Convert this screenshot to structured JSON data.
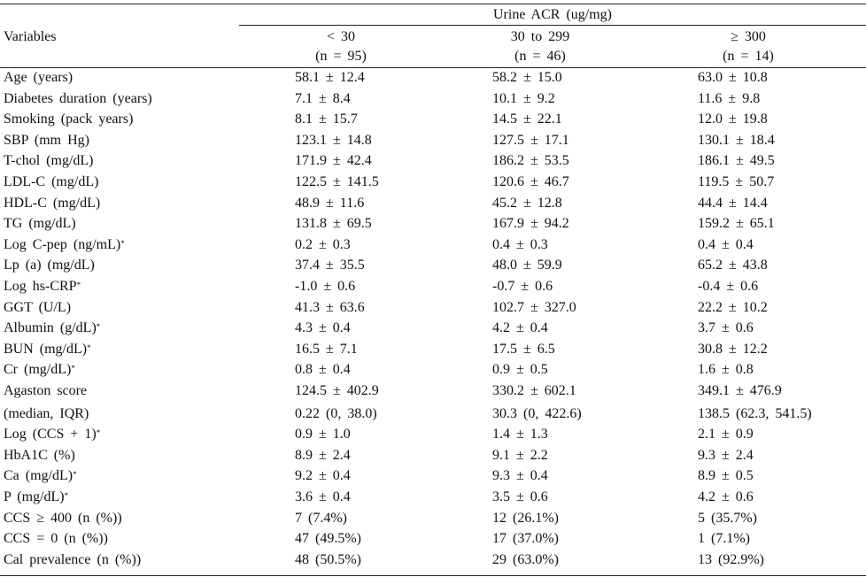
{
  "header": {
    "variables": "Variables",
    "group": "Urine ACR (ug/mg)",
    "columns": [
      {
        "label": "< 30",
        "n": "(n = 95)"
      },
      {
        "label": "30 to 299",
        "n": "(n = 46)"
      },
      {
        "label": "≥ 300",
        "n": "(n = 14)"
      }
    ]
  },
  "rows": [
    {
      "label": "Age (years)",
      "cells": [
        "58.1 ± 12.4",
        "58.2 ± 15.0",
        "63.0 ± 10.8"
      ]
    },
    {
      "label": "Diabetes duration (years)",
      "cells": [
        "7.1 ± 8.4",
        "10.1 ± 9.2",
        "11.6 ± 9.8"
      ]
    },
    {
      "label": "Smoking (pack years)",
      "cells": [
        "8.1 ± 15.7",
        "14.5 ± 22.1",
        "12.0 ± 19.8"
      ]
    },
    {
      "label": "SBP (mm Hg)",
      "cells": [
        "123.1 ± 14.8",
        "127.5 ± 17.1",
        "130.1 ± 18.4"
      ]
    },
    {
      "label": "T-chol (mg/dL)",
      "cells": [
        "171.9 ± 42.4",
        "186.2 ± 53.5",
        "186.1 ± 49.5"
      ]
    },
    {
      "label": "LDL-C (mg/dL)",
      "cells": [
        "122.5 ± 141.5",
        "120.6 ± 46.7",
        "119.5 ± 50.7"
      ]
    },
    {
      "label": "HDL-C (mg/dL)",
      "cells": [
        "48.9 ± 11.6",
        "45.2 ± 12.8",
        "44.4 ± 14.4"
      ]
    },
    {
      "label": "TG (mg/dL)",
      "cells": [
        "131.8 ± 69.5",
        "167.9 ± 94.2",
        "159.2 ± 65.1"
      ]
    },
    {
      "label": "Log C-pep (ng/mL)",
      "note": "*",
      "cells": [
        "0.2 ± 0.3",
        "0.4 ± 0.3",
        "0.4 ± 0.4"
      ]
    },
    {
      "label": "Lp (a) (mg/dL)",
      "cells": [
        "37.4 ± 35.5",
        "48.0 ± 59.9",
        "65.2 ± 43.8"
      ]
    },
    {
      "label": "Log hs-CRP",
      "note": "*",
      "cells": [
        "-1.0 ± 0.6",
        "-0.7 ± 0.6",
        "-0.4 ± 0.6"
      ]
    },
    {
      "label": "GGT (U/L)",
      "cells": [
        "41.3 ± 63.6",
        "102.7 ± 327.0",
        "22.2 ± 10.2"
      ]
    },
    {
      "label": "Albumin (g/dL)",
      "note": "*",
      "cells": [
        "4.3 ± 0.4",
        "4.2 ± 0.4",
        "3.7 ± 0.6"
      ]
    },
    {
      "label": "BUN (mg/dL)",
      "note": "*",
      "cells": [
        "16.5 ± 7.1",
        "17.5 ± 6.5",
        "30.8 ± 12.2"
      ]
    },
    {
      "label": "Cr (mg/dL)",
      "note": "*",
      "cells": [
        "0.8 ± 0.4",
        "0.9 ± 0.5",
        "1.6 ± 0.8"
      ]
    },
    {
      "label": "Agaston score",
      "cells": [
        "124.5 ± 402.9",
        "330.2 ± 602.1",
        "349.1 ± 476.9"
      ]
    },
    {
      "label": "(median, IQR)",
      "cells": [
        "0.22 (0, 38.0)",
        "30.3 (0, 422.6)",
        "138.5 (62.3, 541.5)"
      ]
    },
    {
      "label": "Log (CCS + 1)",
      "note": "*",
      "cells": [
        "0.9 ± 1.0",
        "1.4 ± 1.3",
        "2.1 ± 0.9"
      ]
    },
    {
      "label": "HbA1C (%)",
      "cells": [
        "8.9 ± 2.4",
        "9.1 ± 2.2",
        "9.3 ± 2.4"
      ]
    },
    {
      "label": "Ca (mg/dL)",
      "note": "*",
      "cells": [
        "9.2 ± 0.4",
        "9.3 ± 0.4",
        "8.9 ± 0.5"
      ]
    },
    {
      "label": "P (mg/dL)",
      "note": "*",
      "cells": [
        "3.6 ± 0.4",
        "3.5 ± 0.6",
        "4.2 ± 0.6"
      ]
    },
    {
      "label": "CCS ≥ 400 (n (%))",
      "cells": [
        "7 (7.4%)",
        "12 (26.1%)",
        "5 (35.7%)"
      ]
    },
    {
      "label": "CCS = 0 (n (%))",
      "cells": [
        "47 (49.5%)",
        "17 (37.0%)",
        "1 (7.1%)"
      ]
    },
    {
      "label": "Cal prevalence (n (%))",
      "cells": [
        "48 (50.5%)",
        "29 (63.0%)",
        "13 (92.9%)"
      ]
    }
  ]
}
